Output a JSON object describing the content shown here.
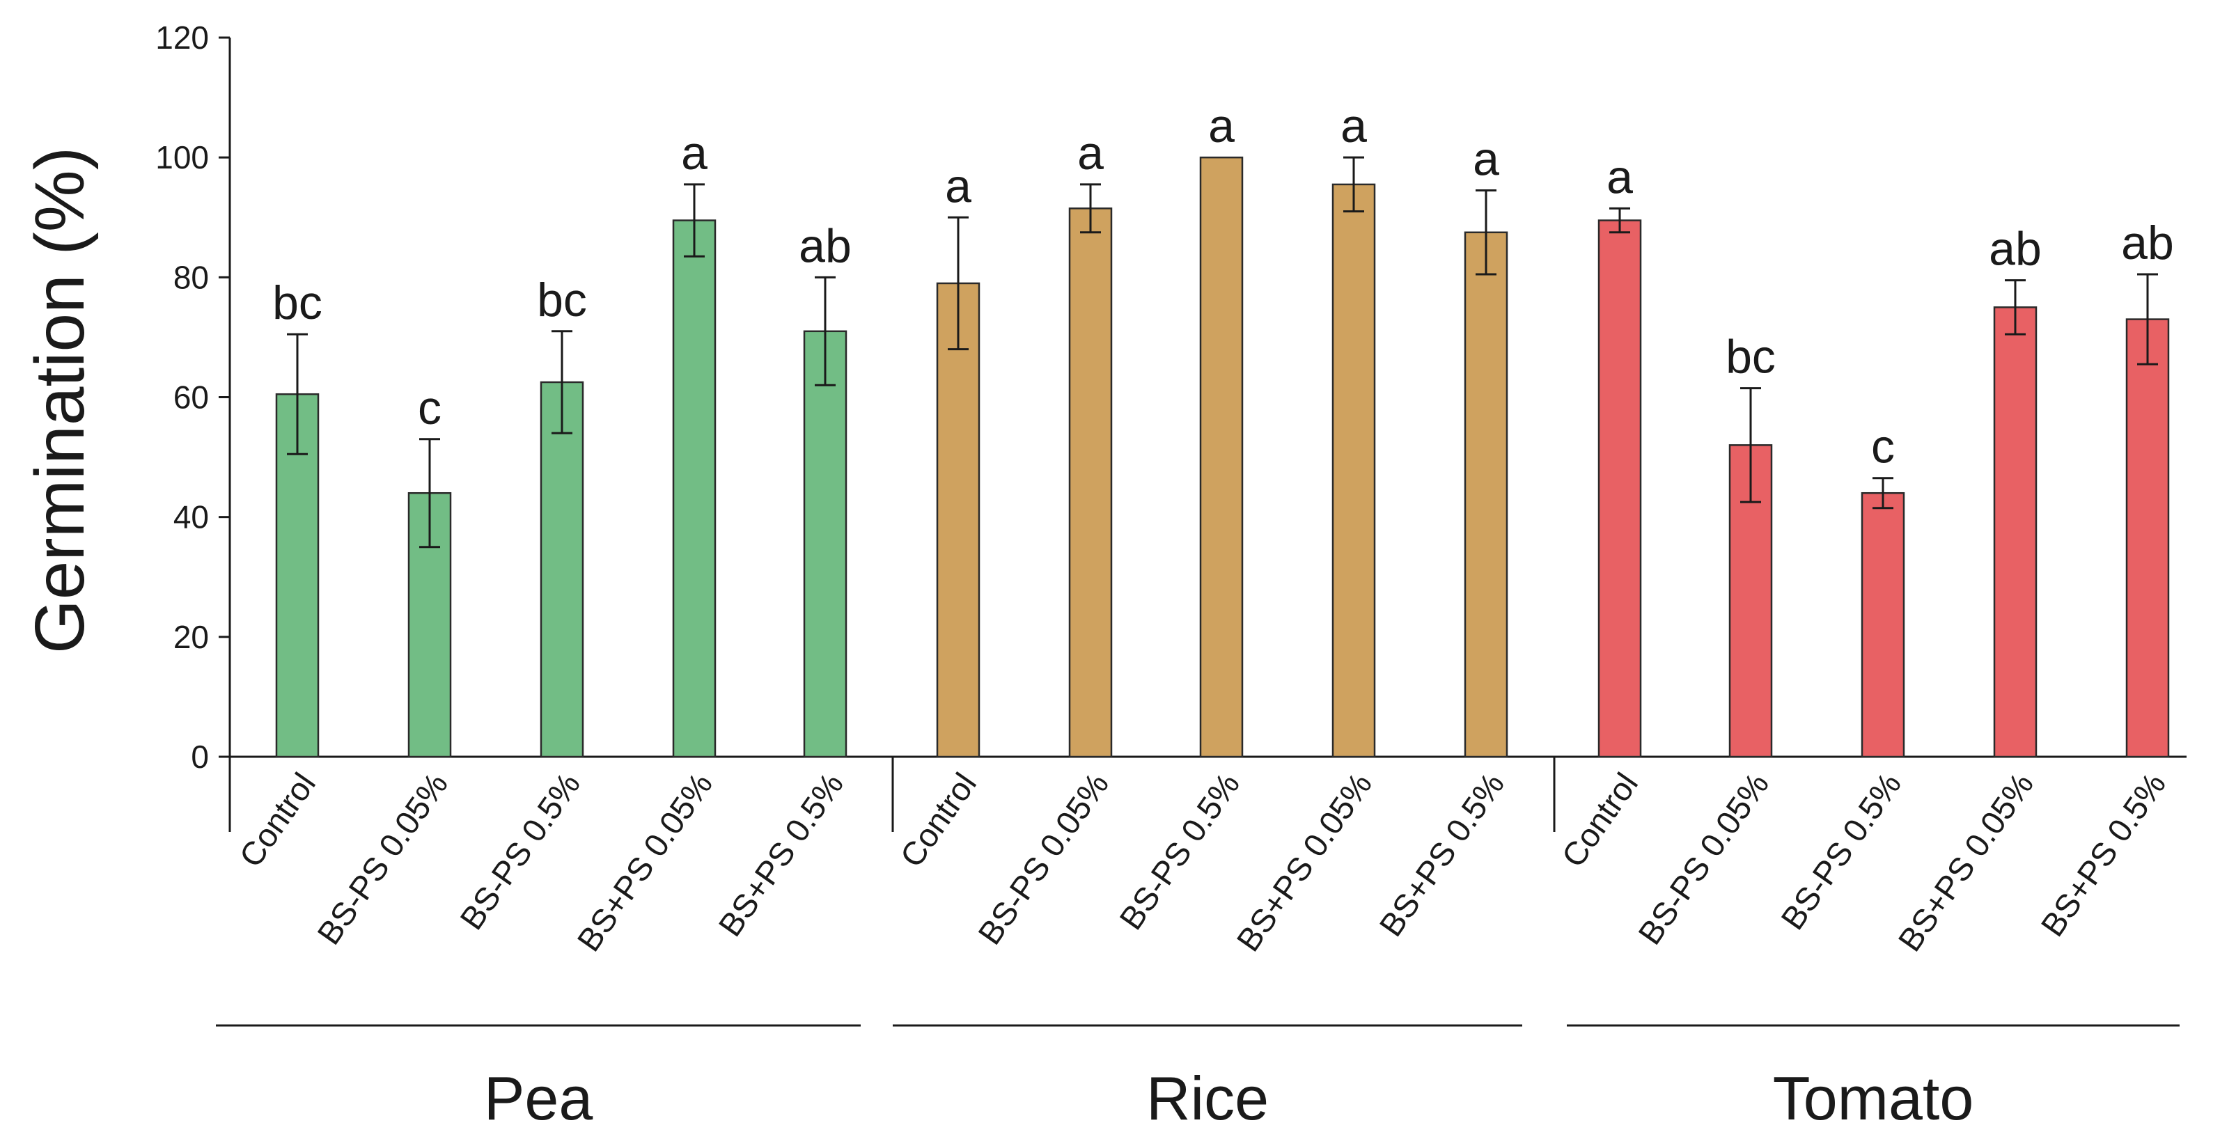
{
  "chart_data": {
    "type": "bar",
    "title": "",
    "ylabel": "Germination (%)",
    "xlabel": "",
    "ylim": [
      0,
      120
    ],
    "yticks": [
      0,
      20,
      40,
      60,
      80,
      100,
      120
    ],
    "grid": false,
    "groups": [
      {
        "name": "Pea",
        "color": "#72bd85",
        "bars": [
          {
            "label": "Control",
            "value": 60.5,
            "err": 10,
            "sig": "bc"
          },
          {
            "label": "BS-PS 0.05%",
            "value": 44,
            "err": 9,
            "sig": "c"
          },
          {
            "label": "BS-PS 0.5%",
            "value": 62.5,
            "err": 8.5,
            "sig": "bc"
          },
          {
            "label": "BS+PS 0.05%",
            "value": 89.5,
            "err": 6,
            "sig": "a"
          },
          {
            "label": "BS+PS 0.5%",
            "value": 71,
            "err": 9,
            "sig": "ab"
          }
        ]
      },
      {
        "name": "Rice",
        "color": "#cfa25f",
        "bars": [
          {
            "label": "Control",
            "value": 79,
            "err": 11,
            "sig": "a"
          },
          {
            "label": "BS-PS 0.05%",
            "value": 91.5,
            "err": 4,
            "sig": "a"
          },
          {
            "label": "BS-PS 0.5%",
            "value": 100,
            "err": 0,
            "sig": "a"
          },
          {
            "label": "BS+PS 0.05%",
            "value": 95.5,
            "err": 4.5,
            "sig": "a"
          },
          {
            "label": "BS+PS 0.5%",
            "value": 87.5,
            "err": 7,
            "sig": "a"
          }
        ]
      },
      {
        "name": "Tomato",
        "color": "#e86164",
        "bars": [
          {
            "label": "Control",
            "value": 89.5,
            "err": 2,
            "sig": "a"
          },
          {
            "label": "BS-PS 0.05%",
            "value": 52,
            "err": 9.5,
            "sig": "bc"
          },
          {
            "label": "BS-PS 0.5%",
            "value": 44,
            "err": 2.5,
            "sig": "c"
          },
          {
            "label": "BS+PS 0.05%",
            "value": 75,
            "err": 4.5,
            "sig": "ab"
          },
          {
            "label": "BS+PS 0.5%",
            "value": 73,
            "err": 7.5,
            "sig": "ab"
          }
        ]
      }
    ]
  }
}
